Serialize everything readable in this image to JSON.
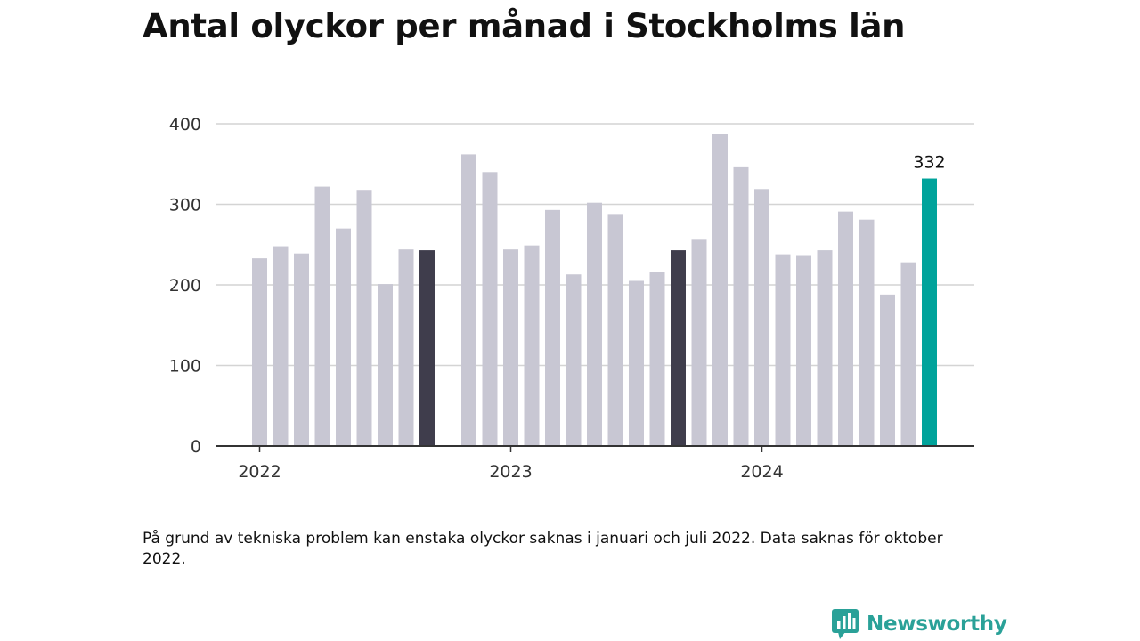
{
  "title": "Antal olyckor per månad i Stockholms län",
  "note": "På grund av tekniska problem kan enstaka olyckor saknas i januari och juli 2022. Data saknas för oktober 2022.",
  "brand": {
    "name": "Newsworthy",
    "icon": "newsworthy-logo-icon"
  },
  "colors": {
    "bar_default": "#c8c7d3",
    "bar_highlight": "#3f3d4c",
    "bar_latest": "#00a39b",
    "grid": "#d4d4d4",
    "axis": "#333333",
    "brand": "#2aa198"
  },
  "chart_data": {
    "type": "bar",
    "x_tick_labels": [
      "2022",
      "2023",
      "2024"
    ],
    "y_ticks": [
      0,
      100,
      200,
      300,
      400
    ],
    "ylim": [
      0,
      400
    ],
    "grid": "horizontal",
    "data_label": {
      "month": "2024-09",
      "text": "332"
    },
    "series": [
      {
        "months": [
          "2022-01",
          "2022-02",
          "2022-03",
          "2022-04",
          "2022-05",
          "2022-06",
          "2022-07",
          "2022-08",
          "2022-09",
          "2022-10",
          "2022-11",
          "2022-12",
          "2023-01",
          "2023-02",
          "2023-03",
          "2023-04",
          "2023-05",
          "2023-06",
          "2023-07",
          "2023-08",
          "2023-09",
          "2023-10",
          "2023-11",
          "2023-12",
          "2024-01",
          "2024-02",
          "2024-03",
          "2024-04",
          "2024-05",
          "2024-06",
          "2024-07",
          "2024-08",
          "2024-09"
        ],
        "values": [
          233,
          248,
          239,
          322,
          270,
          318,
          201,
          244,
          243,
          null,
          362,
          340,
          244,
          249,
          293,
          213,
          302,
          288,
          205,
          216,
          243,
          256,
          387,
          346,
          319,
          238,
          237,
          243,
          291,
          281,
          188,
          228,
          332
        ],
        "highlight": [
          "2022-09",
          "2023-09"
        ],
        "latest": "2024-09"
      }
    ]
  }
}
